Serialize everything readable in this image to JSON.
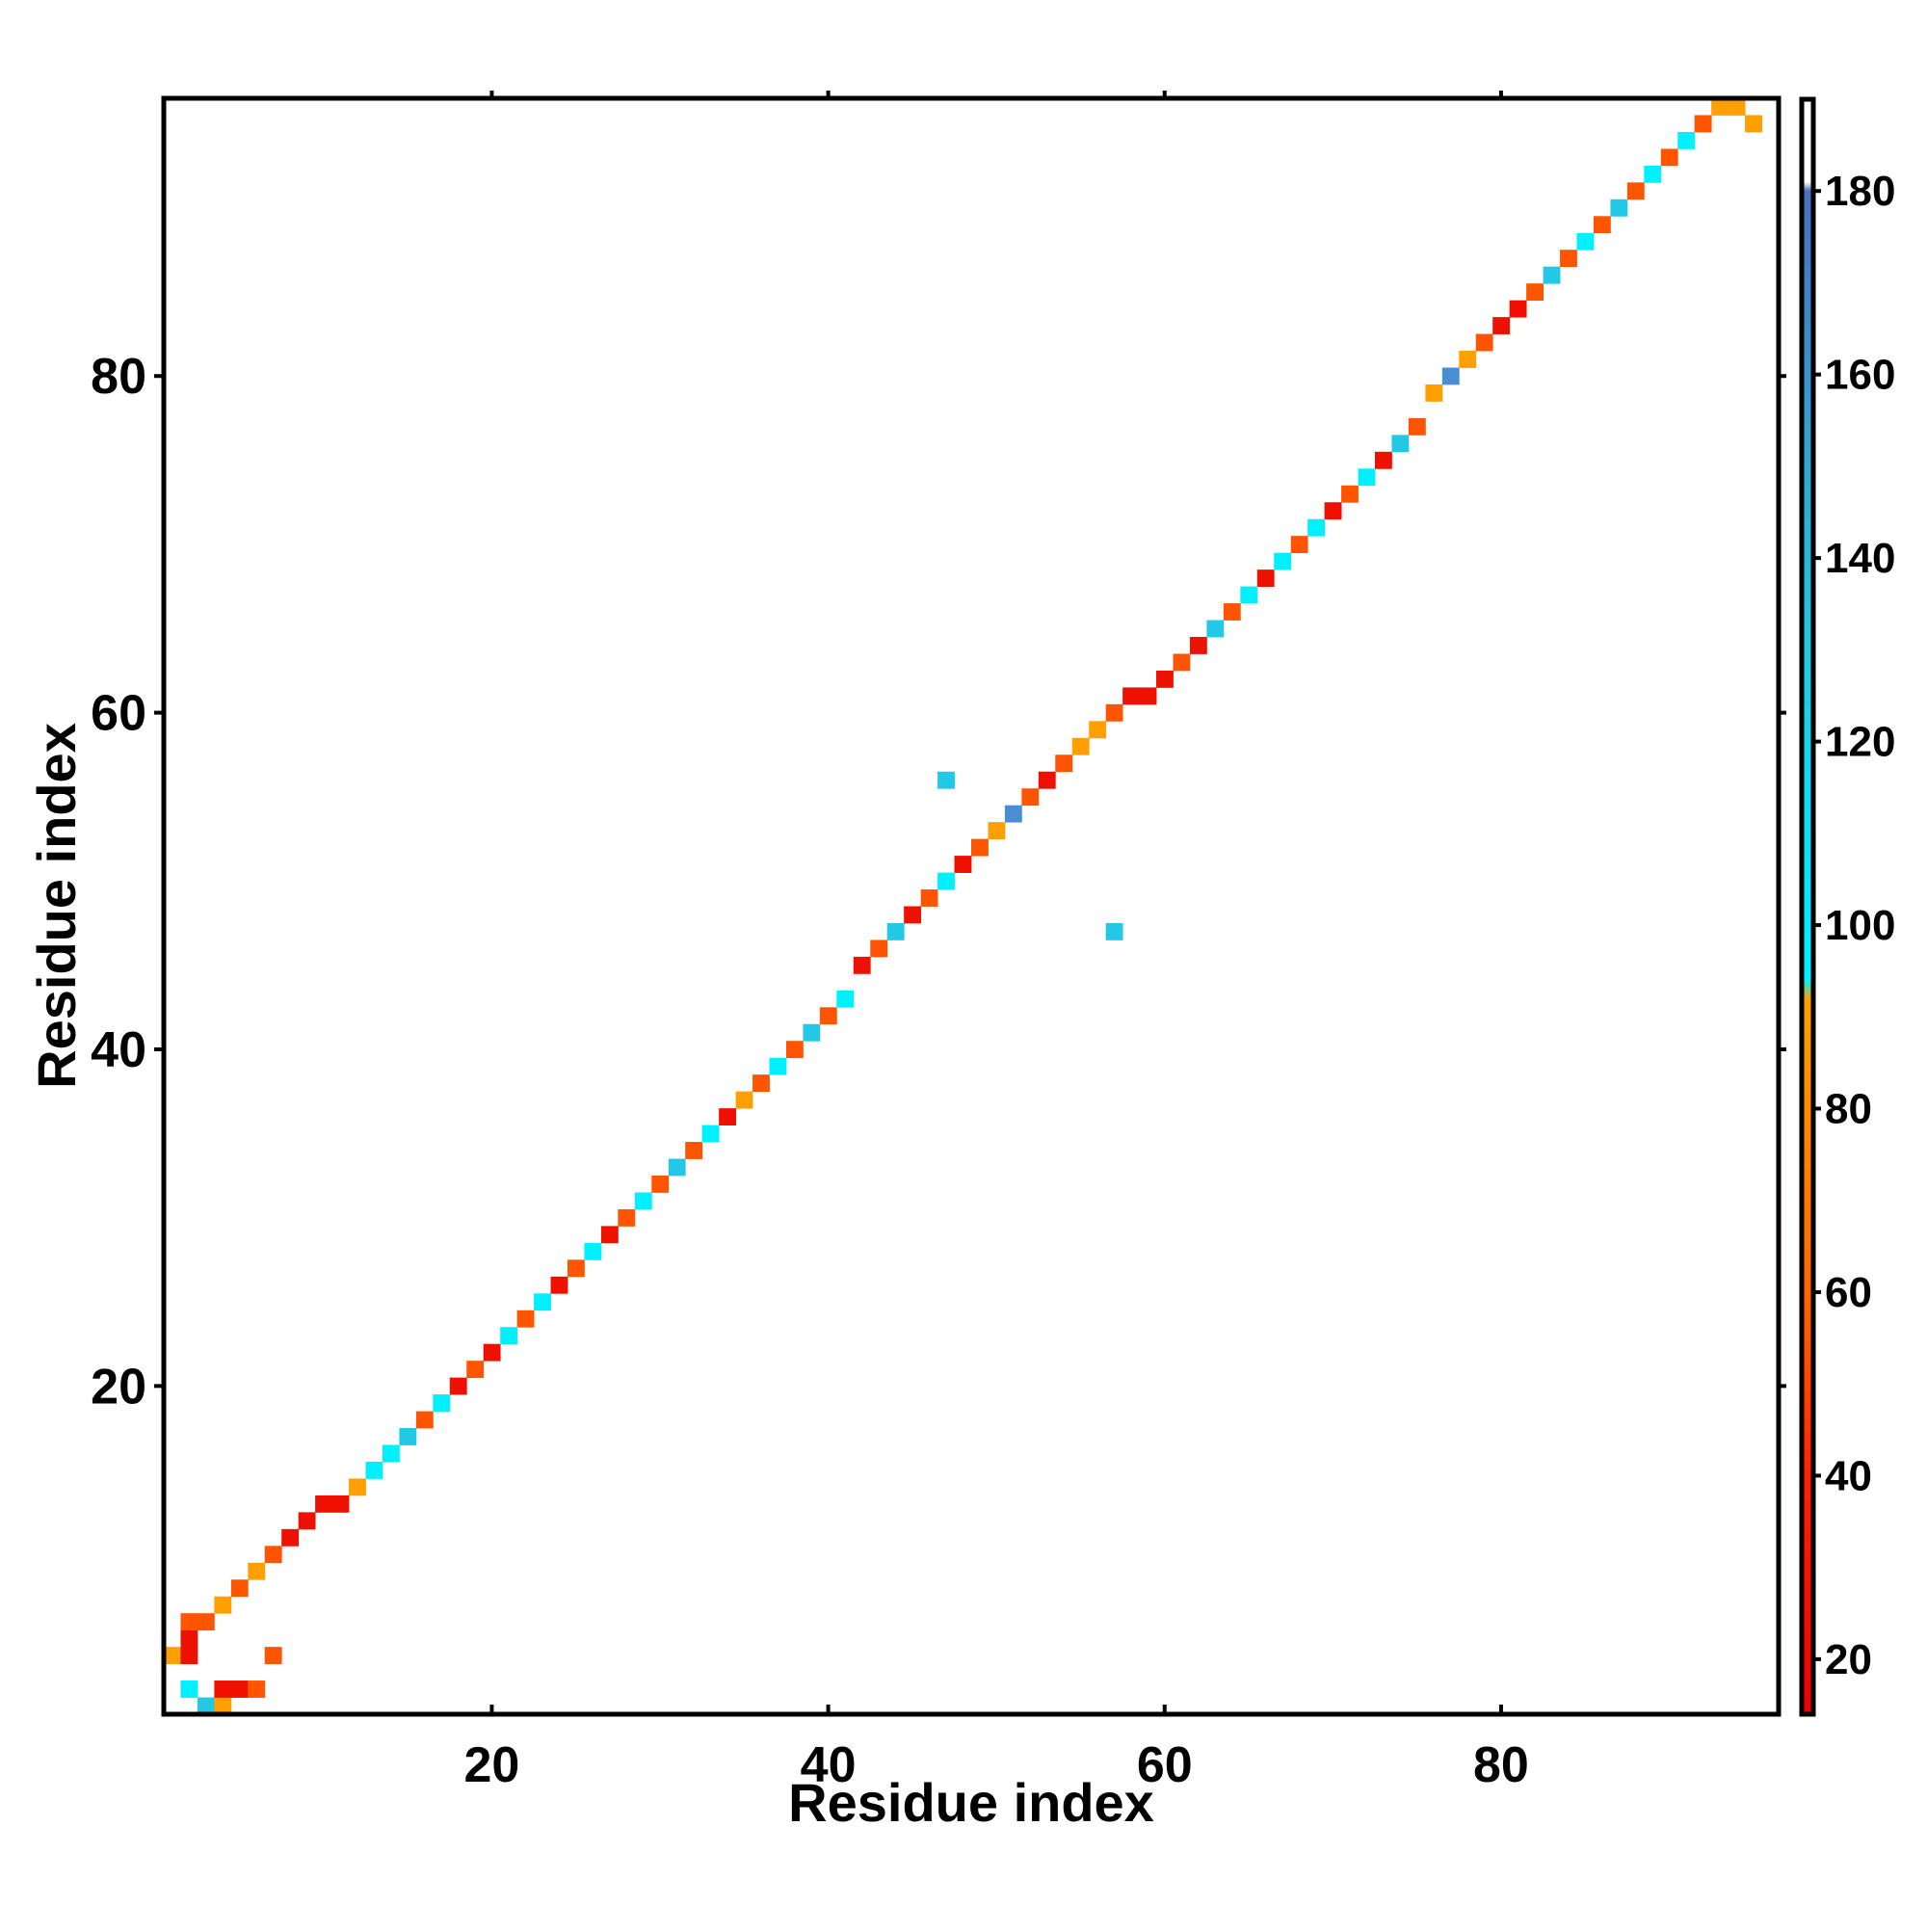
{
  "chart_data": {
    "type": "heatmap",
    "title": "",
    "xlabel": "Residue index",
    "ylabel": "Residue index",
    "xlim": [
      1,
      96
    ],
    "ylim": [
      1,
      96
    ],
    "x_ticks": [
      20,
      40,
      60,
      80
    ],
    "y_ticks": [
      20,
      40,
      60,
      80
    ],
    "x_tick_labels": [
      "20",
      "40",
      "60",
      "80"
    ],
    "y_tick_labels": [
      "20",
      "40",
      "60",
      "80"
    ],
    "grid": false,
    "legend": "colorbar-right",
    "colorbar": {
      "range": [
        14,
        190
      ],
      "ticks": [
        20,
        40,
        60,
        80,
        100,
        120,
        140,
        160,
        180
      ],
      "tick_labels": [
        "20",
        "40",
        "60",
        "80",
        "100",
        "120",
        "140",
        "160",
        "180"
      ],
      "stops": [
        {
          "value": 14,
          "color": "#ee0000"
        },
        {
          "value": 40,
          "color": "#ff2200"
        },
        {
          "value": 60,
          "color": "#ff6600"
        },
        {
          "value": 92,
          "color": "#ffa000"
        },
        {
          "value": 94,
          "color": "#00f0ff"
        },
        {
          "value": 130,
          "color": "#22c8e6"
        },
        {
          "value": 180,
          "color": "#4a70bb"
        },
        {
          "value": 181,
          "color": "#ffffff"
        },
        {
          "value": 190,
          "color": "#ffffff"
        }
      ]
    },
    "cell_colors": {
      "red": "#ee1100",
      "orange": "#ff5500",
      "amber": "#ffa000",
      "cyan": "#00f0ff",
      "skyblue": "#22c8e6",
      "steelblue": "#4a8ed2"
    },
    "cells": [
      {
        "x": 2,
        "y": 2,
        "c": "cyan"
      },
      {
        "x": 3,
        "y": 1,
        "c": "skyblue"
      },
      {
        "x": 4,
        "y": 1,
        "c": "amber"
      },
      {
        "x": 1,
        "y": 4,
        "c": "amber"
      },
      {
        "x": 2,
        "y": 4,
        "c": "red"
      },
      {
        "x": 4,
        "y": 2,
        "c": "red"
      },
      {
        "x": 5,
        "y": 2,
        "c": "red"
      },
      {
        "x": 6,
        "y": 2,
        "c": "orange"
      },
      {
        "x": 2,
        "y": 5,
        "c": "red"
      },
      {
        "x": 3,
        "y": 6,
        "c": "orange"
      },
      {
        "x": 2,
        "y": 6,
        "c": "orange"
      },
      {
        "x": 4,
        "y": 7,
        "c": "amber"
      },
      {
        "x": 5,
        "y": 8,
        "c": "orange"
      },
      {
        "x": 6,
        "y": 9,
        "c": "amber"
      },
      {
        "x": 7,
        "y": 4,
        "c": "orange"
      },
      {
        "x": 7,
        "y": 10,
        "c": "orange"
      },
      {
        "x": 8,
        "y": 11,
        "c": "red"
      },
      {
        "x": 9,
        "y": 12,
        "c": "red"
      },
      {
        "x": 10,
        "y": 13,
        "c": "red"
      },
      {
        "x": 11,
        "y": 13,
        "c": "red"
      },
      {
        "x": 12,
        "y": 14,
        "c": "amber"
      },
      {
        "x": 13,
        "y": 15,
        "c": "cyan"
      },
      {
        "x": 14,
        "y": 16,
        "c": "cyan"
      },
      {
        "x": 15,
        "y": 17,
        "c": "skyblue"
      },
      {
        "x": 16,
        "y": 18,
        "c": "orange"
      },
      {
        "x": 17,
        "y": 19,
        "c": "cyan"
      },
      {
        "x": 18,
        "y": 20,
        "c": "red"
      },
      {
        "x": 19,
        "y": 21,
        "c": "orange"
      },
      {
        "x": 20,
        "y": 22,
        "c": "red"
      },
      {
        "x": 21,
        "y": 23,
        "c": "cyan"
      },
      {
        "x": 22,
        "y": 24,
        "c": "orange"
      },
      {
        "x": 23,
        "y": 25,
        "c": "cyan"
      },
      {
        "x": 24,
        "y": 26,
        "c": "red"
      },
      {
        "x": 25,
        "y": 27,
        "c": "orange"
      },
      {
        "x": 26,
        "y": 28,
        "c": "cyan"
      },
      {
        "x": 27,
        "y": 29,
        "c": "red"
      },
      {
        "x": 28,
        "y": 30,
        "c": "orange"
      },
      {
        "x": 29,
        "y": 31,
        "c": "cyan"
      },
      {
        "x": 30,
        "y": 32,
        "c": "orange"
      },
      {
        "x": 31,
        "y": 33,
        "c": "skyblue"
      },
      {
        "x": 32,
        "y": 34,
        "c": "orange"
      },
      {
        "x": 33,
        "y": 35,
        "c": "cyan"
      },
      {
        "x": 34,
        "y": 36,
        "c": "red"
      },
      {
        "x": 35,
        "y": 37,
        "c": "amber"
      },
      {
        "x": 36,
        "y": 38,
        "c": "orange"
      },
      {
        "x": 37,
        "y": 39,
        "c": "cyan"
      },
      {
        "x": 38,
        "y": 40,
        "c": "orange"
      },
      {
        "x": 39,
        "y": 41,
        "c": "skyblue"
      },
      {
        "x": 40,
        "y": 42,
        "c": "orange"
      },
      {
        "x": 41,
        "y": 43,
        "c": "cyan"
      },
      {
        "x": 42,
        "y": 45,
        "c": "red"
      },
      {
        "x": 43,
        "y": 46,
        "c": "orange"
      },
      {
        "x": 44,
        "y": 47,
        "c": "skyblue"
      },
      {
        "x": 45,
        "y": 48,
        "c": "red"
      },
      {
        "x": 46,
        "y": 49,
        "c": "orange"
      },
      {
        "x": 47,
        "y": 50,
        "c": "cyan"
      },
      {
        "x": 48,
        "y": 51,
        "c": "red"
      },
      {
        "x": 49,
        "y": 52,
        "c": "orange"
      },
      {
        "x": 50,
        "y": 53,
        "c": "amber"
      },
      {
        "x": 51,
        "y": 54,
        "c": "steelblue"
      },
      {
        "x": 52,
        "y": 55,
        "c": "orange"
      },
      {
        "x": 53,
        "y": 56,
        "c": "red"
      },
      {
        "x": 54,
        "y": 57,
        "c": "orange"
      },
      {
        "x": 55,
        "y": 58,
        "c": "amber"
      },
      {
        "x": 56,
        "y": 59,
        "c": "amber"
      },
      {
        "x": 57,
        "y": 60,
        "c": "orange"
      },
      {
        "x": 58,
        "y": 61,
        "c": "red"
      },
      {
        "x": 59,
        "y": 61,
        "c": "red"
      },
      {
        "x": 60,
        "y": 62,
        "c": "red"
      },
      {
        "x": 61,
        "y": 63,
        "c": "orange"
      },
      {
        "x": 62,
        "y": 64,
        "c": "red"
      },
      {
        "x": 63,
        "y": 65,
        "c": "skyblue"
      },
      {
        "x": 64,
        "y": 66,
        "c": "orange"
      },
      {
        "x": 65,
        "y": 67,
        "c": "cyan"
      },
      {
        "x": 66,
        "y": 68,
        "c": "red"
      },
      {
        "x": 67,
        "y": 69,
        "c": "cyan"
      },
      {
        "x": 68,
        "y": 70,
        "c": "orange"
      },
      {
        "x": 69,
        "y": 71,
        "c": "cyan"
      },
      {
        "x": 70,
        "y": 72,
        "c": "red"
      },
      {
        "x": 71,
        "y": 73,
        "c": "orange"
      },
      {
        "x": 72,
        "y": 74,
        "c": "cyan"
      },
      {
        "x": 73,
        "y": 75,
        "c": "red"
      },
      {
        "x": 74,
        "y": 76,
        "c": "skyblue"
      },
      {
        "x": 75,
        "y": 77,
        "c": "orange"
      },
      {
        "x": 76,
        "y": 79,
        "c": "amber"
      },
      {
        "x": 77,
        "y": 80,
        "c": "steelblue"
      },
      {
        "x": 78,
        "y": 81,
        "c": "amber"
      },
      {
        "x": 79,
        "y": 82,
        "c": "orange"
      },
      {
        "x": 80,
        "y": 83,
        "c": "red"
      },
      {
        "x": 81,
        "y": 84,
        "c": "red"
      },
      {
        "x": 82,
        "y": 85,
        "c": "orange"
      },
      {
        "x": 83,
        "y": 86,
        "c": "skyblue"
      },
      {
        "x": 84,
        "y": 87,
        "c": "orange"
      },
      {
        "x": 85,
        "y": 88,
        "c": "cyan"
      },
      {
        "x": 86,
        "y": 89,
        "c": "orange"
      },
      {
        "x": 87,
        "y": 90,
        "c": "skyblue"
      },
      {
        "x": 88,
        "y": 91,
        "c": "orange"
      },
      {
        "x": 89,
        "y": 92,
        "c": "cyan"
      },
      {
        "x": 90,
        "y": 93,
        "c": "orange"
      },
      {
        "x": 91,
        "y": 94,
        "c": "cyan"
      },
      {
        "x": 92,
        "y": 95,
        "c": "orange"
      },
      {
        "x": 93,
        "y": 96,
        "c": "amber"
      },
      {
        "x": 94,
        "y": 96,
        "c": "amber"
      },
      {
        "x": 95,
        "y": 95,
        "c": "amber"
      },
      {
        "x": 47,
        "y": 56,
        "c": "skyblue"
      },
      {
        "x": 57,
        "y": 47,
        "c": "skyblue"
      }
    ]
  }
}
